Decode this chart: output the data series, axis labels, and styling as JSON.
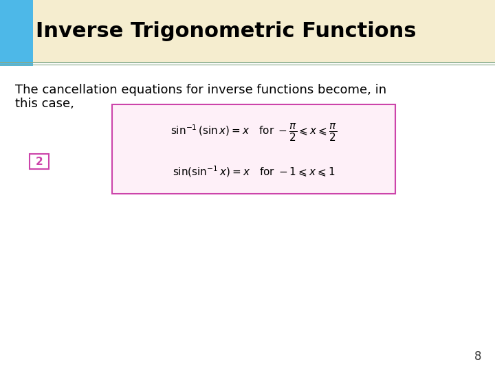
{
  "title": "Inverse Trigonometric Functions",
  "title_bg_color": "#F5EDCF",
  "title_accent_color": "#4DB8E8",
  "title_fontsize": 22,
  "title_font_color": "#000000",
  "body_text_line1": "The cancellation equations for inverse functions become, in",
  "body_text_line2": "this case,",
  "body_fontsize": 13,
  "eq1": "$\\sin^{-1}(\\sin x) = x\\quad \\mathrm{for}\\; -\\dfrac{\\pi}{2} \\leqslant x \\leqslant \\dfrac{\\pi}{2}$",
  "eq2": "$\\sin(\\sin^{-1}x) = x\\quad \\mathrm{for}\\; -1 \\leqslant x \\leqslant 1$",
  "box_border_color": "#CC44AA",
  "box_fill_color": "#FEF0F8",
  "label_2_color": "#CC44AA",
  "label_2_border": "#CC44AA",
  "page_number": "8",
  "bg_color": "#FFFFFF",
  "header_line_color": "#88AA88",
  "header_line2_color": "#88AA88"
}
